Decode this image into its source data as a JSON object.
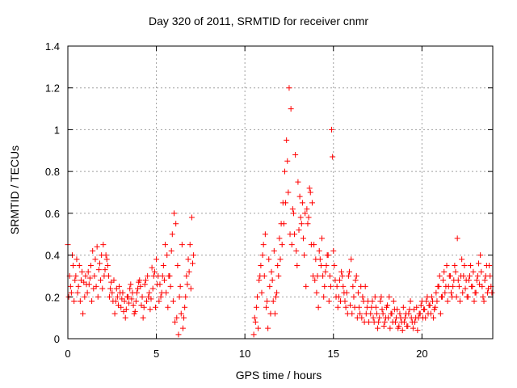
{
  "chart_data": {
    "type": "scatter",
    "title": "Day 320 of 2011, SRMTID for receiver cnmr",
    "xlabel": "GPS time / hours",
    "ylabel": "SRMTID / TECUs",
    "xlim": [
      0,
      24
    ],
    "ylim": [
      0,
      1.4
    ],
    "x_ticks": [
      "0",
      "5",
      "10",
      "15",
      "20"
    ],
    "y_ticks": [
      "0",
      "0.2",
      "0.4",
      "0.6",
      "0.8",
      "1",
      "1.2",
      "1.4"
    ],
    "grid": true,
    "marker": "+",
    "color": "#ff0000",
    "series": [
      {
        "x": [
          0.0,
          0.1,
          0.2,
          0.3,
          0.4,
          0.5,
          0.6,
          0.7,
          0.8,
          0.9,
          1.0,
          1.1,
          1.2,
          1.3,
          1.4,
          1.5,
          1.6,
          1.7,
          1.8,
          1.9,
          2.0,
          2.1,
          2.2,
          2.3,
          2.4,
          2.5,
          2.6,
          2.7,
          2.8,
          2.9,
          3.0,
          3.1,
          3.2,
          3.3,
          3.4,
          3.5,
          3.6,
          3.7,
          3.8,
          3.9,
          4.0,
          4.1,
          4.2,
          4.3,
          4.4,
          4.5,
          4.6,
          4.7,
          4.8,
          4.9,
          5.0,
          5.1,
          5.2,
          5.3,
          5.4,
          5.5,
          5.6,
          5.7,
          5.8,
          5.9,
          6.0,
          6.1,
          6.2,
          6.3,
          6.4,
          6.5,
          6.6,
          6.7,
          6.8,
          6.9,
          7.0,
          7.1,
          0.05,
          0.15,
          0.25,
          0.35,
          0.45,
          0.55,
          0.65,
          0.75,
          0.85,
          0.95,
          1.05,
          1.15,
          1.25,
          1.35,
          1.45,
          1.55,
          1.65,
          1.75,
          1.85,
          1.95,
          2.05,
          2.15,
          2.25,
          2.35,
          2.45,
          2.55,
          2.65,
          2.75,
          2.85,
          2.95,
          3.05,
          3.15,
          3.25,
          3.35,
          3.45,
          3.55,
          3.65,
          3.75,
          3.85,
          3.95,
          4.05,
          4.15,
          4.25,
          4.35,
          4.45,
          4.55,
          4.65,
          4.75,
          4.85,
          4.95,
          5.05,
          5.15,
          5.25,
          5.35,
          5.45,
          5.55,
          5.65,
          5.75,
          5.85,
          5.95,
          6.05,
          6.15,
          6.25,
          6.35,
          6.45,
          6.55,
          6.65,
          6.75,
          6.85,
          6.95,
          7.05,
          10.5,
          10.6,
          10.7,
          10.8,
          10.9,
          11.0,
          11.1,
          11.2,
          11.3,
          11.4,
          11.5,
          11.6,
          11.7,
          11.8,
          11.9,
          12.0,
          12.1,
          12.2,
          12.3,
          12.4,
          12.5,
          12.6,
          12.7,
          12.8,
          12.9,
          13.0,
          13.1,
          13.2,
          13.3,
          13.4,
          13.5,
          13.6,
          13.7,
          13.8,
          13.9,
          14.0,
          14.1,
          14.2,
          14.3,
          14.4,
          14.5,
          14.6,
          14.7,
          14.8,
          14.9,
          15.0,
          15.1,
          15.2,
          15.3,
          15.4,
          15.5,
          15.6,
          15.7,
          15.8,
          15.9,
          16.0,
          16.1,
          16.2,
          16.3,
          16.4,
          16.5,
          16.6,
          16.7,
          16.8,
          16.9,
          17.0,
          10.55,
          10.65,
          10.75,
          10.85,
          10.95,
          11.05,
          11.15,
          11.25,
          11.35,
          11.45,
          11.55,
          11.65,
          11.75,
          11.85,
          11.95,
          12.05,
          12.15,
          12.25,
          12.35,
          12.45,
          12.55,
          12.65,
          12.75,
          12.85,
          12.95,
          13.05,
          13.15,
          13.25,
          13.35,
          13.45,
          13.55,
          13.65,
          13.75,
          13.85,
          13.95,
          14.05,
          14.15,
          14.25,
          14.35,
          14.45,
          14.55,
          14.65,
          14.75,
          14.85,
          14.95,
          15.05,
          15.15,
          15.25,
          15.35,
          15.45,
          15.55,
          15.65,
          15.75,
          15.85,
          15.95,
          16.05,
          16.15,
          16.25,
          16.35,
          16.45,
          16.55,
          16.65,
          16.75,
          16.85,
          16.95,
          17.1,
          17.2,
          17.3,
          17.4,
          17.5,
          17.6,
          17.7,
          17.8,
          17.9,
          18.0,
          18.1,
          18.2,
          18.3,
          18.4,
          18.5,
          18.6,
          18.7,
          18.8,
          18.9,
          19.0,
          19.1,
          19.2,
          19.3,
          19.4,
          19.5,
          19.6,
          19.7,
          19.8,
          19.9,
          20.0,
          20.1,
          20.2,
          20.3,
          20.4,
          20.5,
          20.6,
          20.7,
          20.8,
          20.9,
          21.0,
          21.1,
          21.2,
          21.3,
          21.4,
          21.5,
          21.6,
          21.7,
          21.8,
          21.9,
          22.0,
          22.1,
          22.2,
          22.3,
          22.4,
          22.5,
          22.6,
          22.7,
          22.8,
          22.9,
          23.0,
          23.1,
          23.2,
          23.3,
          23.4,
          23.5,
          23.6,
          23.7,
          23.8,
          23.9,
          17.15,
          17.25,
          17.35,
          17.45,
          17.55,
          17.65,
          17.75,
          17.85,
          17.95,
          18.05,
          18.15,
          18.25,
          18.35,
          18.45,
          18.55,
          18.65,
          18.75,
          18.85,
          18.95,
          19.05,
          19.15,
          19.25,
          19.35,
          19.45,
          19.55,
          19.65,
          19.75,
          19.85,
          19.95,
          20.05,
          20.15,
          20.25,
          20.35,
          20.45,
          20.55,
          20.65,
          20.75,
          20.85,
          20.95,
          21.05,
          21.15,
          21.25,
          21.35,
          21.45,
          21.55,
          21.65,
          21.75,
          21.85,
          21.95,
          22.05,
          22.15,
          22.25,
          22.35,
          22.45,
          22.55,
          22.65,
          22.75,
          22.85,
          22.95,
          23.05,
          23.15,
          23.25,
          23.35,
          23.45,
          23.55,
          23.65,
          23.75,
          23.85,
          23.95
        ],
        "y": [
          0.45,
          0.3,
          0.22,
          0.35,
          0.28,
          0.38,
          0.25,
          0.18,
          0.32,
          0.27,
          0.3,
          0.22,
          0.26,
          0.35,
          0.42,
          0.3,
          0.25,
          0.2,
          0.36,
          0.4,
          0.45,
          0.33,
          0.38,
          0.3,
          0.24,
          0.22,
          0.28,
          0.18,
          0.2,
          0.25,
          0.15,
          0.22,
          0.18,
          0.14,
          0.2,
          0.24,
          0.19,
          0.16,
          0.13,
          0.22,
          0.27,
          0.25,
          0.2,
          0.15,
          0.28,
          0.3,
          0.22,
          0.19,
          0.24,
          0.32,
          0.38,
          0.3,
          0.26,
          0.22,
          0.35,
          0.45,
          0.4,
          0.3,
          0.25,
          0.5,
          0.6,
          0.55,
          0.35,
          0.2,
          0.12,
          0.05,
          0.15,
          0.3,
          0.38,
          0.45,
          0.58,
          0.4,
          0.2,
          0.25,
          0.4,
          0.18,
          0.3,
          0.22,
          0.35,
          0.28,
          0.12,
          0.2,
          0.26,
          0.32,
          0.29,
          0.18,
          0.24,
          0.38,
          0.44,
          0.33,
          0.28,
          0.24,
          0.3,
          0.4,
          0.35,
          0.2,
          0.27,
          0.18,
          0.12,
          0.24,
          0.16,
          0.22,
          0.19,
          0.13,
          0.1,
          0.2,
          0.17,
          0.26,
          0.22,
          0.12,
          0.18,
          0.24,
          0.28,
          0.16,
          0.1,
          0.26,
          0.18,
          0.2,
          0.14,
          0.34,
          0.3,
          0.15,
          0.26,
          0.18,
          0.2,
          0.3,
          0.28,
          0.22,
          0.15,
          0.3,
          0.42,
          0.18,
          0.08,
          0.1,
          0.02,
          0.25,
          0.45,
          0.1,
          0.2,
          0.26,
          0.32,
          0.24,
          0.36,
          0.02,
          0.08,
          0.2,
          0.28,
          0.35,
          0.4,
          0.3,
          0.15,
          0.05,
          0.25,
          0.32,
          0.18,
          0.12,
          0.22,
          0.3,
          0.38,
          0.45,
          0.55,
          0.65,
          0.85,
          1.2,
          1.1,
          0.62,
          0.5,
          0.42,
          0.75,
          0.68,
          0.55,
          0.48,
          0.6,
          0.62,
          0.58,
          0.7,
          0.65,
          0.45,
          0.38,
          0.3,
          0.42,
          0.35,
          0.3,
          0.25,
          0.35,
          0.4,
          0.3,
          1.0,
          0.42,
          0.28,
          0.25,
          0.2,
          0.18,
          0.3,
          0.22,
          0.15,
          0.12,
          0.32,
          0.38,
          0.25,
          0.15,
          0.3,
          0.22,
          0.12,
          0.1,
          0.18,
          0.25,
          0.15,
          0.08,
          0.1,
          0.15,
          0.05,
          0.3,
          0.22,
          0.45,
          0.5,
          0.18,
          0.38,
          0.12,
          0.28,
          0.42,
          0.2,
          0.35,
          0.48,
          0.55,
          0.65,
          0.8,
          0.95,
          0.7,
          0.5,
          0.45,
          0.6,
          0.88,
          0.35,
          0.52,
          0.58,
          0.65,
          0.4,
          0.25,
          0.55,
          0.72,
          0.45,
          0.3,
          0.28,
          0.22,
          0.15,
          0.38,
          0.48,
          0.2,
          0.32,
          0.4,
          0.18,
          0.25,
          0.87,
          0.35,
          0.2,
          0.15,
          0.28,
          0.32,
          0.25,
          0.18,
          0.22,
          0.3,
          0.16,
          0.12,
          0.2,
          0.28,
          0.1,
          0.15,
          0.25,
          0.2,
          0.08,
          0.12,
          0.18,
          0.12,
          0.18,
          0.08,
          0.15,
          0.05,
          0.1,
          0.2,
          0.12,
          0.08,
          0.15,
          0.1,
          0.05,
          0.12,
          0.18,
          0.08,
          0.14,
          0.06,
          0.1,
          0.04,
          0.08,
          0.12,
          0.06,
          0.14,
          0.1,
          0.05,
          0.08,
          0.15,
          0.1,
          0.12,
          0.18,
          0.14,
          0.1,
          0.2,
          0.16,
          0.12,
          0.18,
          0.14,
          0.22,
          0.25,
          0.3,
          0.2,
          0.28,
          0.22,
          0.35,
          0.25,
          0.3,
          0.2,
          0.28,
          0.32,
          0.48,
          0.25,
          0.3,
          0.22,
          0.35,
          0.28,
          0.2,
          0.3,
          0.25,
          0.32,
          0.22,
          0.28,
          0.36,
          0.4,
          0.25,
          0.18,
          0.3,
          0.22,
          0.35,
          0.25,
          0.15,
          0.1,
          0.2,
          0.12,
          0.08,
          0.18,
          0.14,
          0.06,
          0.1,
          0.16,
          0.2,
          0.12,
          0.08,
          0.14,
          0.1,
          0.05,
          0.12,
          0.08,
          0.15,
          0.1,
          0.06,
          0.12,
          0.18,
          0.08,
          0.14,
          0.1,
          0.04,
          0.12,
          0.16,
          0.1,
          0.14,
          0.18,
          0.12,
          0.16,
          0.2,
          0.1,
          0.15,
          0.18,
          0.25,
          0.12,
          0.2,
          0.32,
          0.25,
          0.18,
          0.3,
          0.22,
          0.25,
          0.35,
          0.2,
          0.28,
          0.18,
          0.38,
          0.3,
          0.24,
          0.2,
          0.28,
          0.35,
          0.25,
          0.18,
          0.22,
          0.3,
          0.26,
          0.32,
          0.2,
          0.28,
          0.35,
          0.24,
          0.3,
          0.22
        ]
      }
    ]
  }
}
